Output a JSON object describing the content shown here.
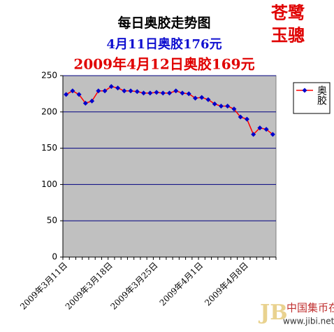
{
  "chart_data": {
    "type": "line",
    "title": "每日奥胶走势图",
    "subtitles": [
      "4月11日奥胶176元",
      "2009年4月12日奥胶169元"
    ],
    "categories": [
      "2009年3月11日",
      null,
      null,
      null,
      null,
      null,
      null,
      "2009年3月18日",
      null,
      null,
      null,
      null,
      null,
      null,
      "2009年3月25日",
      null,
      null,
      null,
      null,
      null,
      null,
      "2009年4月1日",
      null,
      null,
      null,
      null,
      null,
      null,
      "2009年4月8日",
      null,
      null,
      null,
      null
    ],
    "series": [
      {
        "name": "奥胶",
        "color": "#ff0000",
        "marker_color": "#0000cc",
        "values": [
          224,
          229,
          224,
          212,
          215,
          229,
          229,
          235,
          233,
          229,
          229,
          228,
          226,
          226,
          227,
          226,
          226,
          229,
          226,
          225,
          219,
          220,
          217,
          211,
          208,
          208,
          204,
          193,
          190,
          169,
          178,
          176,
          169
        ]
      }
    ],
    "ylim": [
      0,
      250
    ],
    "yticks": [
      0,
      50,
      100,
      150,
      200,
      250
    ],
    "grid": true,
    "legend": "right"
  },
  "stamp": [
    "苍鹭",
    "玉骢"
  ],
  "watermark": {
    "name": "中国集币在线",
    "url": "www.jibi.net"
  }
}
